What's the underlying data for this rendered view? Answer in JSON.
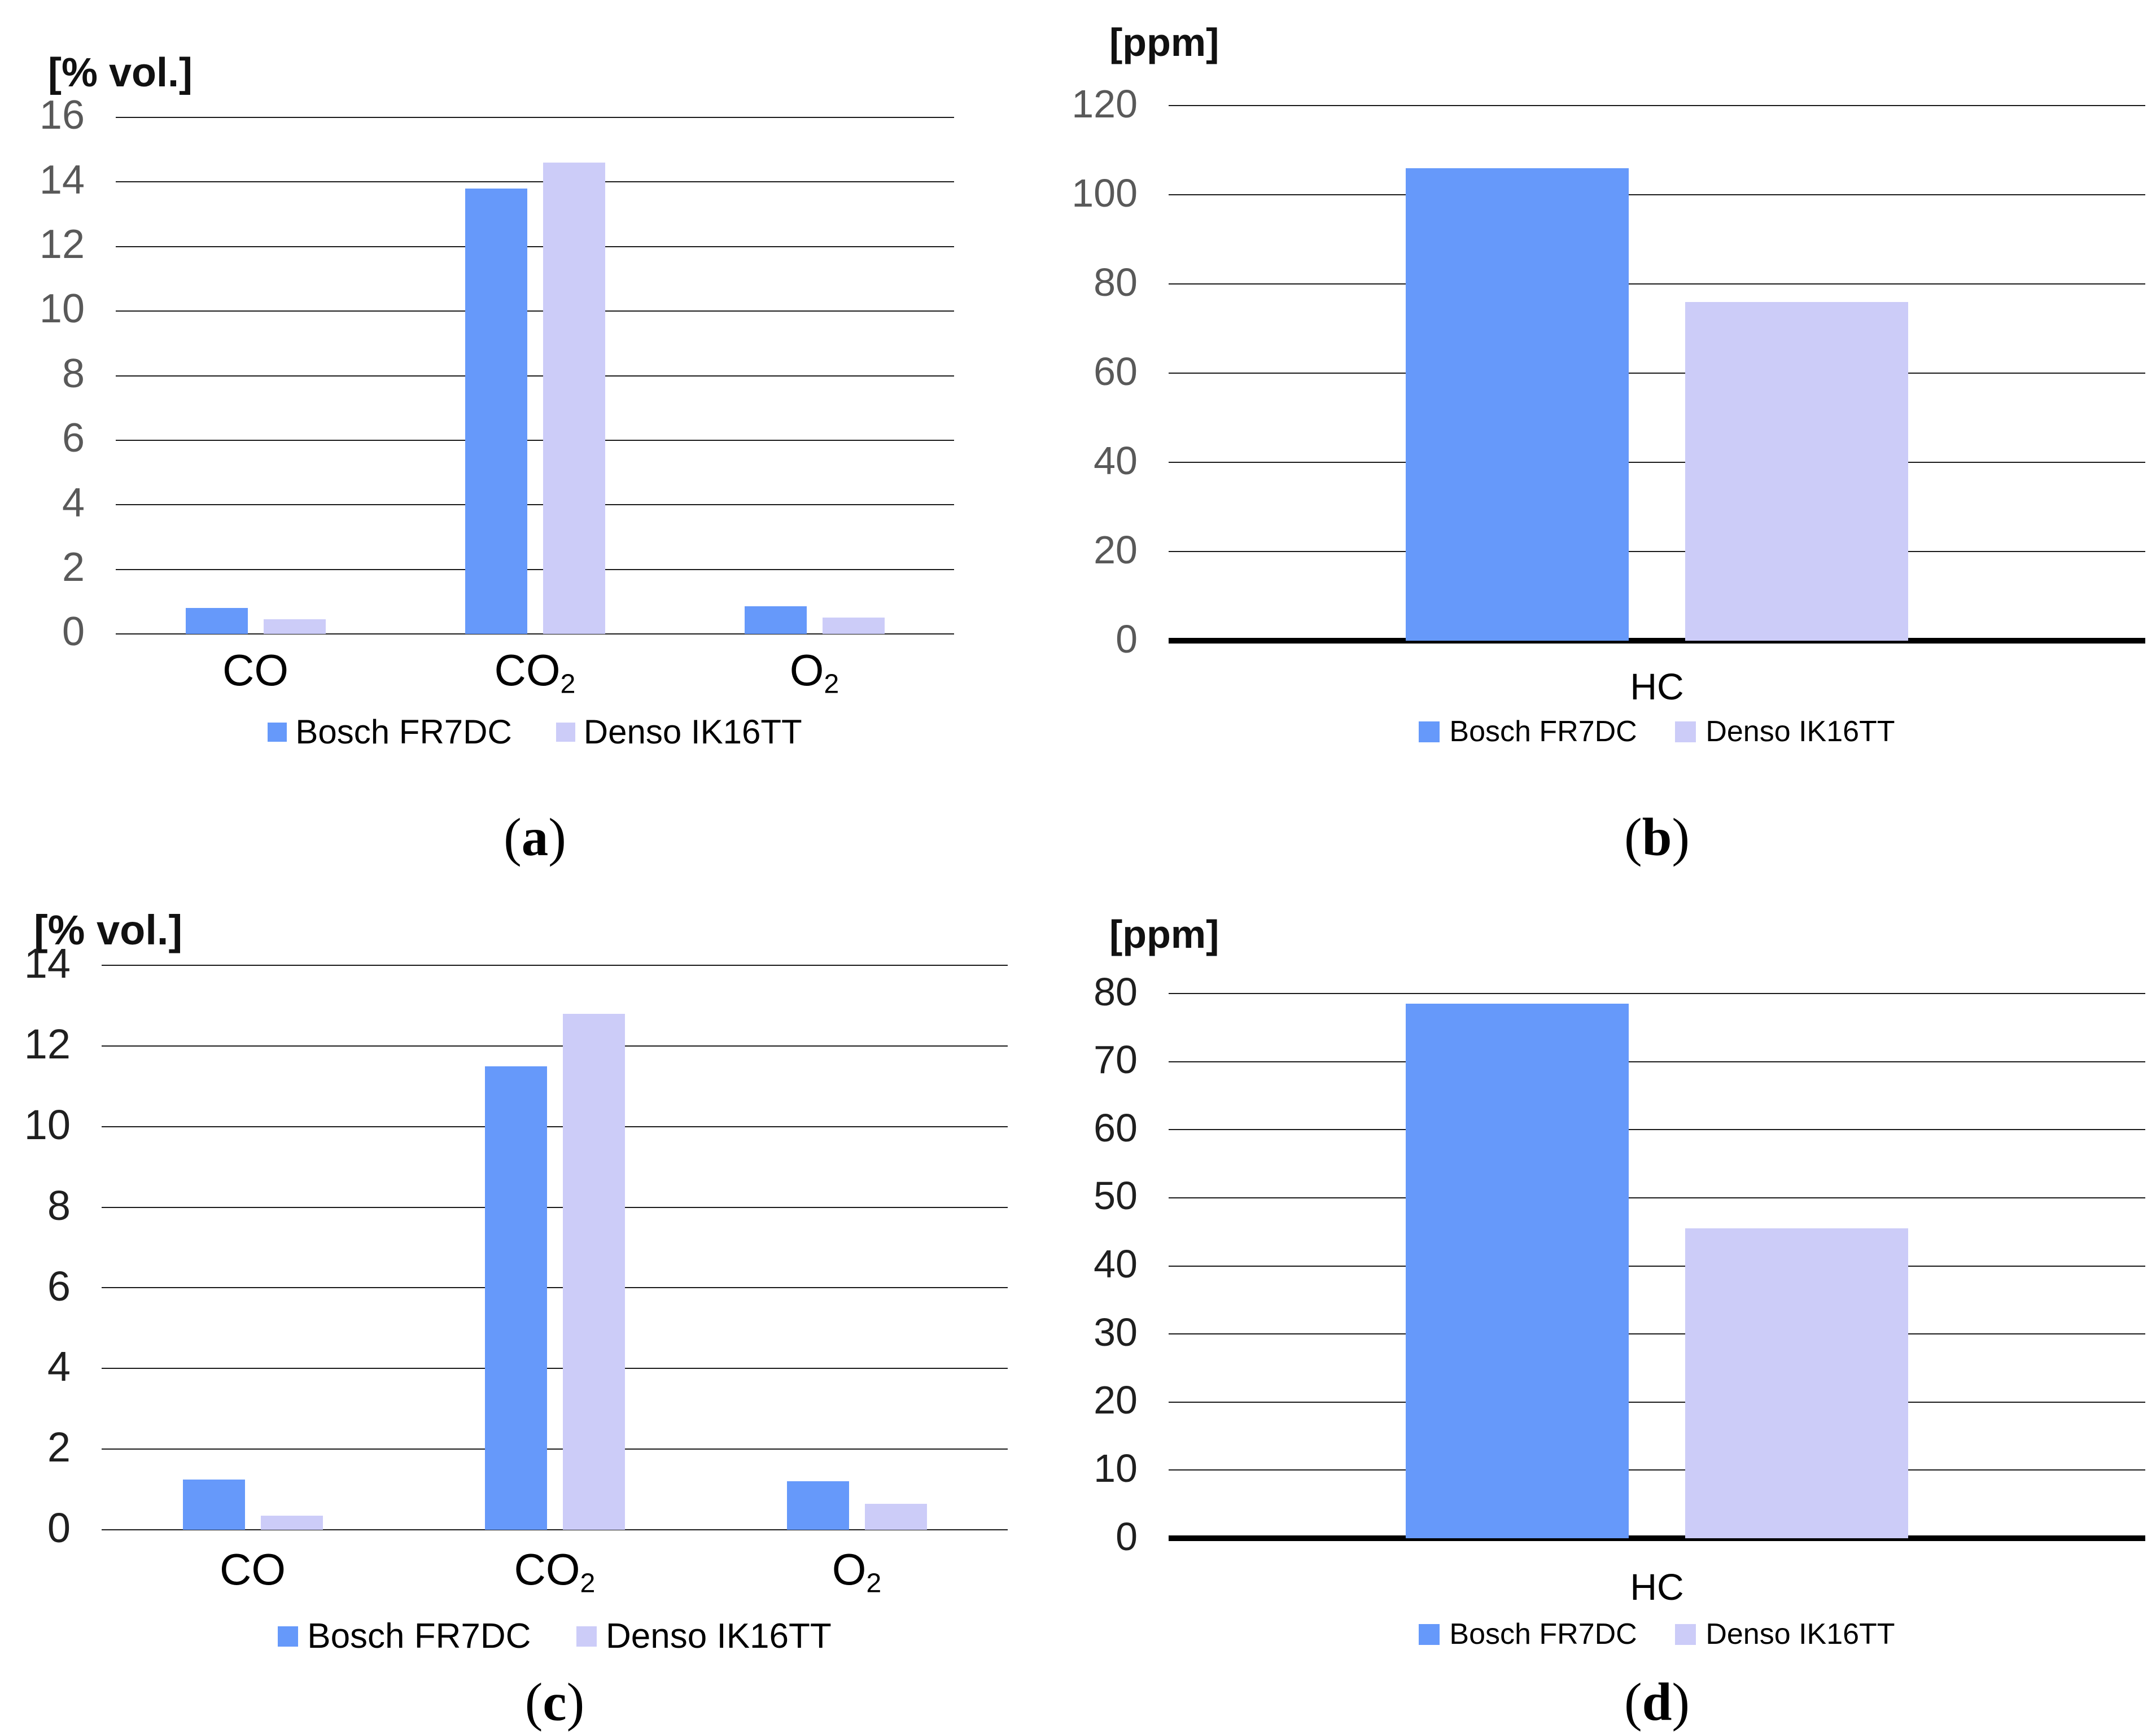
{
  "page": {
    "background": "#ffffff"
  },
  "colors": {
    "series1": "#6699FA",
    "series2": "#CCCCF8",
    "gridline": "#1a1a1a",
    "axis": "#000000",
    "tick_text_top_charts": "#595959",
    "tick_text_bottom_charts": "#1f1f1f"
  },
  "series_names": [
    "Bosch FR7DC",
    "Denso IK16TT"
  ],
  "chart_data": [
    {
      "id": "a",
      "type": "bar",
      "title": "[% vol.]",
      "caption": {
        "open": "(",
        "letter": "a",
        "close": ")"
      },
      "categories": [
        {
          "text": "CO",
          "subscript": ""
        },
        {
          "text": "CO",
          "subscript": "2"
        },
        {
          "text": "O",
          "subscript": "2"
        }
      ],
      "series": [
        {
          "name": "Bosch FR7DC",
          "color": "#6699FA",
          "values": [
            0.8,
            13.8,
            0.85
          ]
        },
        {
          "name": "Denso IK16TT",
          "color": "#CCCCF8",
          "values": [
            0.45,
            14.6,
            0.5
          ]
        }
      ],
      "ylabel": "[% vol.]",
      "ylim": [
        0,
        16
      ],
      "ystep": 2,
      "y_ticks": [
        "16",
        "14",
        "12",
        "10",
        "8",
        "6",
        "4",
        "2",
        "0"
      ],
      "grid": true,
      "legend_position": "bottom",
      "tick_color": "#595959"
    },
    {
      "id": "b",
      "type": "bar",
      "title": "[ppm]",
      "caption": {
        "open": "(",
        "letter": "b",
        "close": ")"
      },
      "categories": [
        {
          "text": "HC",
          "subscript": ""
        }
      ],
      "series": [
        {
          "name": "Bosch FR7DC",
          "color": "#6699FA",
          "values": [
            106
          ]
        },
        {
          "name": "Denso IK16TT",
          "color": "#CCCCF8",
          "values": [
            76
          ]
        }
      ],
      "ylabel": "[ppm]",
      "ylim": [
        0,
        120
      ],
      "ystep": 20,
      "y_ticks": [
        "120",
        "100",
        "80",
        "60",
        "40",
        "20",
        "0"
      ],
      "grid": true,
      "legend_position": "bottom",
      "tick_color": "#595959"
    },
    {
      "id": "c",
      "type": "bar",
      "title": "[% vol.]",
      "caption": {
        "open": "(",
        "letter": "c",
        "close": ")"
      },
      "categories": [
        {
          "text": "CO",
          "subscript": ""
        },
        {
          "text": "CO",
          "subscript": "2"
        },
        {
          "text": "O",
          "subscript": "2"
        }
      ],
      "series": [
        {
          "name": "Bosch FR7DC",
          "color": "#6699FA",
          "values": [
            1.25,
            11.5,
            1.2
          ]
        },
        {
          "name": "Denso IK16TT",
          "color": "#CCCCF8",
          "values": [
            0.35,
            12.8,
            0.65
          ]
        }
      ],
      "ylabel": "[% vol.]",
      "ylim": [
        0,
        14
      ],
      "ystep": 2,
      "y_ticks": [
        "14",
        "12",
        "10",
        "8",
        "6",
        "4",
        "2",
        "0"
      ],
      "grid": true,
      "legend_position": "bottom",
      "tick_color": "#1f1f1f"
    },
    {
      "id": "d",
      "type": "bar",
      "title": "[ppm]",
      "caption": {
        "open": "(",
        "letter": "d",
        "close": ")"
      },
      "categories": [
        {
          "text": "HC",
          "subscript": ""
        }
      ],
      "series": [
        {
          "name": "Bosch FR7DC",
          "color": "#6699FA",
          "values": [
            78.5
          ]
        },
        {
          "name": "Denso IK16TT",
          "color": "#CCCCF8",
          "values": [
            45.5
          ]
        }
      ],
      "ylabel": "[ppm]",
      "ylim": [
        0,
        80
      ],
      "ystep": 10,
      "y_ticks": [
        "80",
        "70",
        "60",
        "50",
        "40",
        "30",
        "20",
        "10",
        "0"
      ],
      "grid": true,
      "legend_position": "bottom",
      "tick_color": "#1f1f1f"
    }
  ]
}
